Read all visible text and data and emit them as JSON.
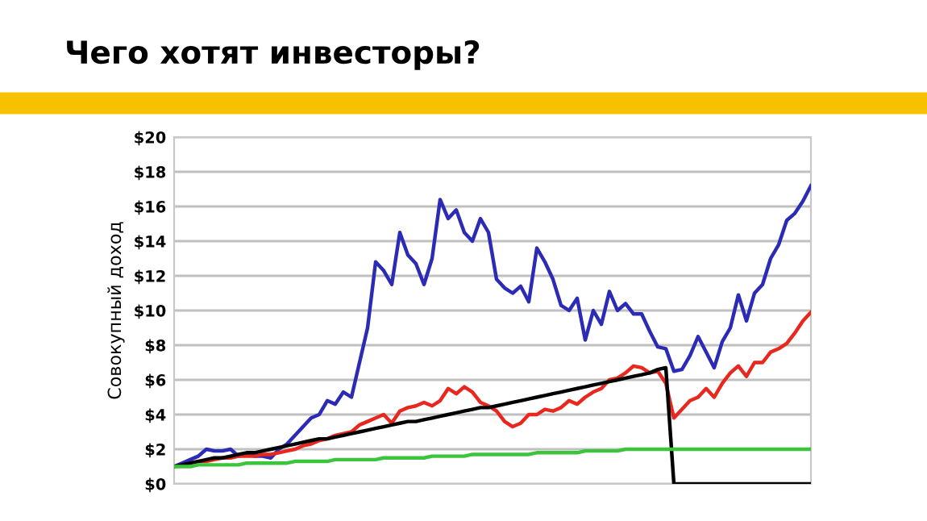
{
  "chart_data": {
    "type": "line",
    "title": "Чего хотят инвесторы?",
    "ylabel": "Совокупный доход",
    "categories": [
      null,
      null,
      null,
      null,
      null,
      null,
      null,
      null,
      null,
      null,
      null,
      null,
      null,
      null,
      null,
      null,
      null,
      null,
      null,
      null,
      null,
      null,
      null,
      null,
      null,
      null,
      null,
      null,
      null,
      null,
      null,
      null,
      null,
      null,
      null,
      null,
      null,
      null,
      null,
      null,
      null,
      null,
      null,
      null,
      null,
      null,
      null,
      null,
      null,
      null,
      null,
      null,
      null,
      null,
      null,
      null,
      null,
      null,
      null,
      null,
      null,
      null,
      null,
      null,
      null,
      null,
      null,
      null,
      null,
      null,
      null,
      null,
      null,
      null,
      null,
      null,
      null,
      null,
      null,
      null
    ],
    "series": [
      {
        "color": "#2b2bb5",
        "values": [
          1.0,
          1.2,
          1.4,
          1.6,
          2.0,
          1.9,
          1.9,
          2.0,
          1.6,
          1.7,
          1.6,
          1.6,
          1.5,
          2.0,
          2.3,
          2.8,
          3.3,
          3.8,
          4.0,
          4.8,
          4.6,
          5.3,
          5.0,
          7.0,
          9.0,
          12.8,
          12.3,
          11.5,
          14.5,
          13.2,
          12.7,
          11.5,
          13.0,
          16.4,
          15.3,
          15.8,
          14.5,
          14.0,
          15.3,
          14.5,
          11.8,
          11.3,
          11.0,
          11.4,
          10.5,
          13.6,
          12.8,
          11.8,
          10.3,
          10.0,
          10.7,
          8.3,
          10.0,
          9.2,
          11.1,
          10.0,
          10.4,
          9.8,
          9.8,
          8.8,
          7.9,
          7.8,
          6.5,
          6.6,
          7.4,
          8.5,
          7.6,
          6.7,
          8.2,
          9.0,
          10.9,
          9.4,
          11.0,
          11.5,
          13.0,
          13.8,
          15.2,
          15.6,
          16.3,
          17.2
        ]
      },
      {
        "color": "#e8281e",
        "values": [
          null,
          null,
          1.2,
          1.3,
          1.3,
          1.4,
          1.5,
          1.5,
          1.6,
          1.6,
          1.6,
          1.7,
          1.7,
          1.8,
          1.9,
          2.0,
          2.2,
          2.3,
          2.5,
          2.6,
          2.8,
          2.9,
          3.0,
          3.4,
          3.6,
          3.8,
          4.0,
          3.5,
          4.2,
          4.4,
          4.5,
          4.7,
          4.5,
          4.8,
          5.5,
          5.2,
          5.6,
          5.3,
          4.7,
          4.5,
          4.2,
          3.6,
          3.3,
          3.5,
          4.0,
          4.0,
          4.3,
          4.2,
          4.4,
          4.8,
          4.6,
          5.0,
          5.3,
          5.5,
          6.0,
          6.1,
          6.4,
          6.8,
          6.7,
          6.4,
          6.5,
          5.8,
          3.8,
          4.3,
          4.8,
          5.0,
          5.5,
          5.0,
          5.8,
          6.4,
          6.8,
          6.2,
          7.0,
          7.0,
          7.6,
          7.8,
          8.1,
          8.7,
          9.4,
          9.9
        ]
      },
      {
        "color": "#000000",
        "values": [
          1.0,
          1.1,
          1.2,
          1.3,
          1.4,
          1.5,
          1.5,
          1.6,
          1.7,
          1.8,
          1.8,
          1.9,
          2.0,
          2.1,
          2.2,
          2.3,
          2.4,
          2.5,
          2.6,
          2.6,
          2.7,
          2.8,
          2.9,
          3.0,
          3.1,
          3.2,
          3.3,
          3.4,
          3.5,
          3.6,
          3.6,
          3.7,
          3.8,
          3.9,
          4.0,
          4.1,
          4.2,
          4.3,
          4.4,
          4.4,
          4.5,
          4.6,
          4.7,
          4.8,
          4.9,
          5.0,
          5.1,
          5.2,
          5.3,
          5.4,
          5.5,
          5.6,
          5.7,
          5.8,
          5.9,
          6.0,
          6.1,
          6.2,
          6.3,
          6.4,
          6.6,
          6.7,
          0,
          0,
          0,
          0,
          0,
          0,
          0,
          0,
          0,
          0,
          0,
          0,
          0,
          0,
          0,
          0,
          0,
          0
        ]
      },
      {
        "color": "#3cc43c",
        "values": [
          1.0,
          1.0,
          1.0,
          1.1,
          1.1,
          1.1,
          1.1,
          1.1,
          1.1,
          1.2,
          1.2,
          1.2,
          1.2,
          1.2,
          1.2,
          1.3,
          1.3,
          1.3,
          1.3,
          1.3,
          1.4,
          1.4,
          1.4,
          1.4,
          1.4,
          1.4,
          1.5,
          1.5,
          1.5,
          1.5,
          1.5,
          1.5,
          1.6,
          1.6,
          1.6,
          1.6,
          1.6,
          1.7,
          1.7,
          1.7,
          1.7,
          1.7,
          1.7,
          1.7,
          1.7,
          1.8,
          1.8,
          1.8,
          1.8,
          1.8,
          1.8,
          1.9,
          1.9,
          1.9,
          1.9,
          1.9,
          2.0,
          2.0,
          2.0,
          2.0,
          2.0,
          2.0,
          2.0,
          2.0,
          2.0,
          2.0,
          2.0,
          2.0,
          2.0,
          2.0,
          2.0,
          2.0,
          2.0,
          2.0,
          2.0,
          2.0,
          2.0,
          2.0,
          2.0,
          2.0
        ]
      }
    ],
    "ylim": [
      0,
      20
    ],
    "yticks": [
      {
        "value": 0,
        "label": "$0"
      },
      {
        "value": 2,
        "label": "$2"
      },
      {
        "value": 4,
        "label": "$4"
      },
      {
        "value": 6,
        "label": "$6"
      },
      {
        "value": 8,
        "label": "$8"
      },
      {
        "value": 10,
        "label": "$10"
      },
      {
        "value": 12,
        "label": "$12"
      },
      {
        "value": 14,
        "label": "$14"
      },
      {
        "value": 16,
        "label": "$16"
      },
      {
        "value": 18,
        "label": "$18"
      },
      {
        "value": 20,
        "label": "$20"
      }
    ],
    "grid": "y",
    "tick_labels": "y",
    "marker": "none",
    "line_style": "solid"
  }
}
